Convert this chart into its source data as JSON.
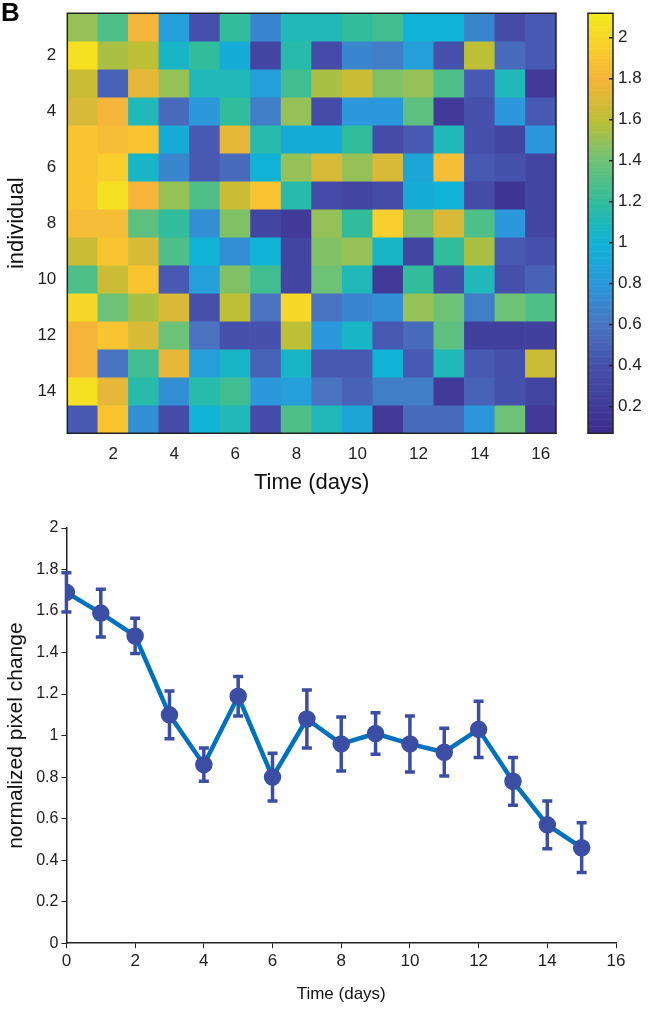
{
  "chart_data": [
    {
      "type": "heatmap",
      "annotations": [
        "B"
      ],
      "xlabel": "Time (days)",
      "ylabel": "individual",
      "categories": [
        null,
        "2",
        null,
        "4",
        null,
        "6",
        null,
        "8",
        null,
        "10",
        null,
        "12",
        null,
        "14",
        null,
        "16"
      ],
      "y_categories": [
        null,
        "2",
        null,
        "4",
        null,
        "6",
        null,
        "8",
        null,
        "10",
        null,
        "12",
        null,
        "14",
        null
      ],
      "cells": [
        [
          1.5,
          1.3,
          1.8,
          0.85,
          0.4,
          1.2,
          0.7,
          1.1,
          1.1,
          1.2,
          1.25,
          1.0,
          1.0,
          0.7,
          0.35,
          0.45
        ],
        [
          2.05,
          1.55,
          1.6,
          1.05,
          1.2,
          0.95,
          0.3,
          1.15,
          0.35,
          0.7,
          0.65,
          0.85,
          0.4,
          1.6,
          0.55,
          0.45
        ],
        [
          1.65,
          0.5,
          1.75,
          1.5,
          1.1,
          1.1,
          0.85,
          1.25,
          1.55,
          1.65,
          1.45,
          1.5,
          1.3,
          0.45,
          1.1,
          0.2
        ],
        [
          1.7,
          1.8,
          1.1,
          0.55,
          0.8,
          1.2,
          0.65,
          1.5,
          0.35,
          0.8,
          0.8,
          1.35,
          0.2,
          0.4,
          0.8,
          0.45
        ],
        [
          1.9,
          1.85,
          1.9,
          0.95,
          0.45,
          1.75,
          1.15,
          0.95,
          0.95,
          1.2,
          0.35,
          0.45,
          1.1,
          0.4,
          0.3,
          0.8
        ],
        [
          1.9,
          1.95,
          1.05,
          0.7,
          0.45,
          0.55,
          1.0,
          1.5,
          1.7,
          1.5,
          1.7,
          0.9,
          1.85,
          0.45,
          0.4,
          0.3
        ],
        [
          1.9,
          2.05,
          1.8,
          1.5,
          1.3,
          1.65,
          1.9,
          1.15,
          0.35,
          0.3,
          0.35,
          0.95,
          1.0,
          0.35,
          0.15,
          0.3
        ],
        [
          1.85,
          1.85,
          1.35,
          1.2,
          0.75,
          1.45,
          0.3,
          0.2,
          1.5,
          1.2,
          1.95,
          1.45,
          1.7,
          1.3,
          0.8,
          0.3
        ],
        [
          1.65,
          1.9,
          1.7,
          1.3,
          1.0,
          0.75,
          1.0,
          0.3,
          1.45,
          1.5,
          1.05,
          0.3,
          1.2,
          1.55,
          0.45,
          0.4
        ],
        [
          1.3,
          1.65,
          1.9,
          0.45,
          0.85,
          1.45,
          1.25,
          0.3,
          1.4,
          1.1,
          0.2,
          1.2,
          0.35,
          1.1,
          0.4,
          0.5
        ],
        [
          2.0,
          1.4,
          1.55,
          1.7,
          0.4,
          1.6,
          0.6,
          2.0,
          0.6,
          0.7,
          0.75,
          1.5,
          1.4,
          0.65,
          1.4,
          1.3
        ],
        [
          1.8,
          1.9,
          1.7,
          1.4,
          0.6,
          0.4,
          0.4,
          1.6,
          0.8,
          1.05,
          0.45,
          0.55,
          1.35,
          0.25,
          0.25,
          0.25
        ],
        [
          1.8,
          0.6,
          1.25,
          1.75,
          0.85,
          1.05,
          0.5,
          1.05,
          0.45,
          0.45,
          1.0,
          0.45,
          1.1,
          0.45,
          0.4,
          1.65
        ],
        [
          2.05,
          1.75,
          1.15,
          0.75,
          1.15,
          1.25,
          0.8,
          0.85,
          0.6,
          0.5,
          0.65,
          0.65,
          0.2,
          0.5,
          0.4,
          0.3
        ],
        [
          0.45,
          1.9,
          0.75,
          0.35,
          1.0,
          1.1,
          0.35,
          1.3,
          1.1,
          0.9,
          0.2,
          0.55,
          0.55,
          0.8,
          1.4,
          0.2
        ]
      ],
      "clim": [
        0.07,
        2.12
      ],
      "cticks": [
        0.2,
        0.4,
        0.6,
        0.8,
        1,
        1.2,
        1.4,
        1.6,
        1.8,
        2
      ]
    },
    {
      "type": "line",
      "xlabel": "Time (days)",
      "ylabel": "normalized pixel change",
      "x": [
        0,
        1,
        2,
        3,
        4,
        5,
        6,
        7,
        8,
        9,
        10,
        11,
        12,
        13,
        14,
        15
      ],
      "series": [
        {
          "color": "#0072bd",
          "colors": [
            "#3b4ea3",
            "#3b4ea3",
            "#3b4ea3",
            "#3b4ea3",
            "#3b4ea3",
            "#3b4ea3",
            "#3b4ea3",
            "#3b4ea3",
            "#3b4ea3",
            "#3b4ea3",
            "#3b4ea3",
            "#3b4ea3",
            "#3b4ea3",
            "#3b4ea3",
            "#3b4ea3",
            "#3b4ea3"
          ],
          "values": [
            1.69,
            1.59,
            1.48,
            1.1,
            0.86,
            1.19,
            0.8,
            1.08,
            0.96,
            1.01,
            0.96,
            0.92,
            1.03,
            0.78,
            0.57,
            0.46
          ],
          "errors": [
            0.095,
            0.115,
            0.085,
            0.115,
            0.08,
            0.095,
            0.115,
            0.14,
            0.13,
            0.1,
            0.135,
            0.115,
            0.135,
            0.115,
            0.115,
            0.12
          ]
        }
      ],
      "xlim": [
        0,
        16
      ],
      "xticks": [
        0,
        2,
        4,
        6,
        8,
        10,
        12,
        14,
        16
      ],
      "ylim": [
        0,
        2
      ],
      "yticks": [
        0,
        0.2,
        0.4,
        0.6,
        0.8,
        1,
        1.2,
        1.4,
        1.6,
        1.8,
        2
      ],
      "marker": "circle",
      "line_style": "solid"
    }
  ]
}
